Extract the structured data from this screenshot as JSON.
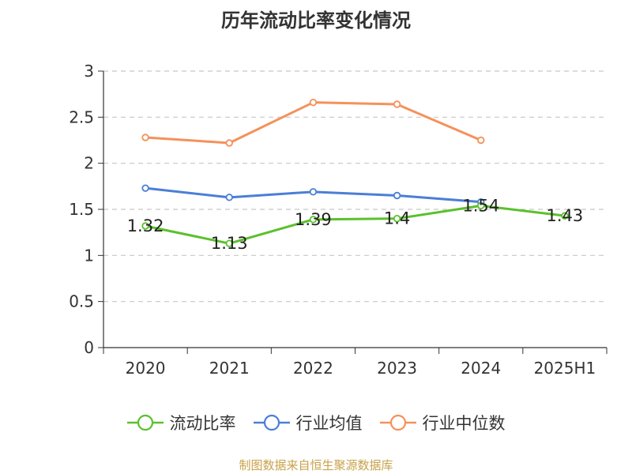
{
  "chart_data": {
    "type": "line",
    "title": "历年流动比率变化情况",
    "categories": [
      "2020",
      "2021",
      "2022",
      "2023",
      "2024",
      "2025H1"
    ],
    "ylim": [
      0,
      3
    ],
    "yticks": [
      "0",
      "0.5",
      "1",
      "1.5",
      "2",
      "2.5",
      "3"
    ],
    "grid": true,
    "legend_position": "bottom",
    "series": [
      {
        "name": "流动比率",
        "color": "#5ac12c",
        "values": [
          1.32,
          1.13,
          1.39,
          1.4,
          1.54,
          1.43
        ],
        "labels": [
          "1.32",
          "1.13",
          "1.39",
          "1.4",
          "1.54",
          "1.43"
        ]
      },
      {
        "name": "行业均值",
        "color": "#4a7fd6",
        "values": [
          1.73,
          1.63,
          1.69,
          1.65,
          1.58,
          null
        ]
      },
      {
        "name": "行业中位数",
        "color": "#f5915a",
        "values": [
          2.28,
          2.22,
          2.66,
          2.64,
          2.25,
          null
        ]
      }
    ]
  },
  "source_text": "制图数据来自恒生聚源数据库"
}
